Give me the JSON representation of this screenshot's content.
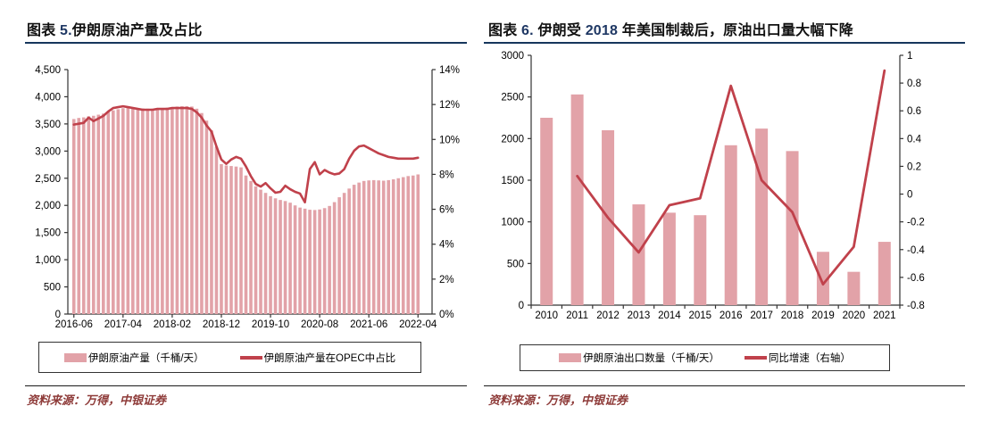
{
  "colors": {
    "bar_fill": "#E2A2A8",
    "line_stroke": "#C0414B",
    "title_accent": "#1F3864",
    "title_rule": "#16365C",
    "source_text": "#8E3B39",
    "axis": "#333333"
  },
  "panels": [
    {
      "title_segments": [
        {
          "text": "图表 ",
          "accent": false
        },
        {
          "text": "5.",
          "accent": true
        },
        {
          "text": "伊朗原油产量及占比",
          "accent": false
        }
      ],
      "legend": [
        {
          "swatch": "bar",
          "label": "伊朗原油产量（千桶/天）"
        },
        {
          "swatch": "line",
          "label": "伊朗原油产量在OPEC中占比"
        }
      ],
      "source": "资料来源：万得，中银证券"
    },
    {
      "title_segments": [
        {
          "text": "图表 ",
          "accent": false
        },
        {
          "text": "6.",
          "accent": true
        },
        {
          "text": " 伊朗受 ",
          "accent": false
        },
        {
          "text": "2018",
          "accent": true
        },
        {
          "text": " 年美国制裁后，原油出口量大幅下降",
          "accent": false
        }
      ],
      "legend": [
        {
          "swatch": "bar",
          "label": "伊朗原油出口数量（千桶/天）"
        },
        {
          "swatch": "line",
          "label": "同比增速（右轴）"
        }
      ],
      "source": "资料来源：万得，中银证券"
    }
  ],
  "chart_data": [
    {
      "type": "bar+line",
      "title": "伊朗原油产量及占比",
      "x_frequency": "monthly",
      "x_start": "2016-06",
      "x_end": "2022-04",
      "x_tick_labels": [
        "2016-06",
        "2017-04",
        "2018-02",
        "2018-12",
        "2019-10",
        "2020-08",
        "2021-06",
        "2022-04"
      ],
      "left_axis": {
        "lim": [
          0,
          4500
        ],
        "step": 500,
        "format": "comma"
      },
      "right_axis": {
        "lim": [
          0,
          14
        ],
        "step": 2,
        "format": "percent"
      },
      "series": [
        {
          "name": "伊朗原油产量（千桶/天）",
          "type": "bar",
          "axis": "left",
          "values": [
            3590,
            3610,
            3620,
            3640,
            3650,
            3670,
            3690,
            3720,
            3750,
            3770,
            3790,
            3800,
            3795,
            3790,
            3785,
            3780,
            3780,
            3785,
            3790,
            3800,
            3810,
            3820,
            3825,
            3825,
            3820,
            3780,
            3700,
            3560,
            3380,
            3080,
            2760,
            2735,
            2725,
            2715,
            2700,
            2550,
            2450,
            2350,
            2290,
            2230,
            2170,
            2130,
            2100,
            2080,
            2050,
            2000,
            1960,
            1940,
            1920,
            1915,
            1925,
            1950,
            1990,
            2060,
            2150,
            2230,
            2310,
            2380,
            2420,
            2450,
            2460,
            2465,
            2460,
            2455,
            2465,
            2480,
            2500,
            2520,
            2540,
            2550,
            2570
          ]
        },
        {
          "name": "伊朗原油产量在OPEC中占比",
          "type": "line",
          "axis": "right",
          "values": [
            10.85,
            10.9,
            10.95,
            11.25,
            11.05,
            11.2,
            11.35,
            11.6,
            11.8,
            11.85,
            11.9,
            11.85,
            11.8,
            11.75,
            11.7,
            11.7,
            11.7,
            11.75,
            11.75,
            11.75,
            11.8,
            11.8,
            11.8,
            11.8,
            11.75,
            11.55,
            11.25,
            10.8,
            10.45,
            9.6,
            8.85,
            8.6,
            8.85,
            9.0,
            8.9,
            8.45,
            7.9,
            7.45,
            7.3,
            7.5,
            7.2,
            6.95,
            7.0,
            7.35,
            7.15,
            7.0,
            6.9,
            6.4,
            8.3,
            8.7,
            8.0,
            8.25,
            8.1,
            8.0,
            8.05,
            8.3,
            8.9,
            9.35,
            9.6,
            9.65,
            9.5,
            9.35,
            9.2,
            9.1,
            9.0,
            8.95,
            8.9,
            8.9,
            8.9,
            8.9,
            8.95
          ]
        }
      ]
    },
    {
      "type": "bar+line",
      "title": "伊朗受2018年美国制裁后，原油出口量大幅下降",
      "categories": [
        "2010",
        "2011",
        "2012",
        "2013",
        "2014",
        "2015",
        "2016",
        "2017",
        "2018",
        "2019",
        "2020",
        "2021"
      ],
      "left_axis": {
        "lim": [
          0,
          3000
        ],
        "step": 500,
        "format": "plain"
      },
      "right_axis": {
        "lim": [
          -0.8,
          1
        ],
        "step": 0.2,
        "format": "decimal"
      },
      "series": [
        {
          "name": "伊朗原油出口数量（千桶/天）",
          "type": "bar",
          "axis": "left",
          "values": [
            2250,
            2530,
            2100,
            1210,
            1110,
            1080,
            1920,
            2120,
            1850,
            640,
            400,
            760
          ]
        },
        {
          "name": "同比增速（右轴）",
          "type": "line",
          "axis": "right",
          "values": [
            null,
            0.13,
            -0.17,
            -0.42,
            -0.08,
            -0.03,
            0.78,
            0.1,
            -0.13,
            -0.65,
            -0.38,
            0.89
          ]
        }
      ]
    }
  ]
}
